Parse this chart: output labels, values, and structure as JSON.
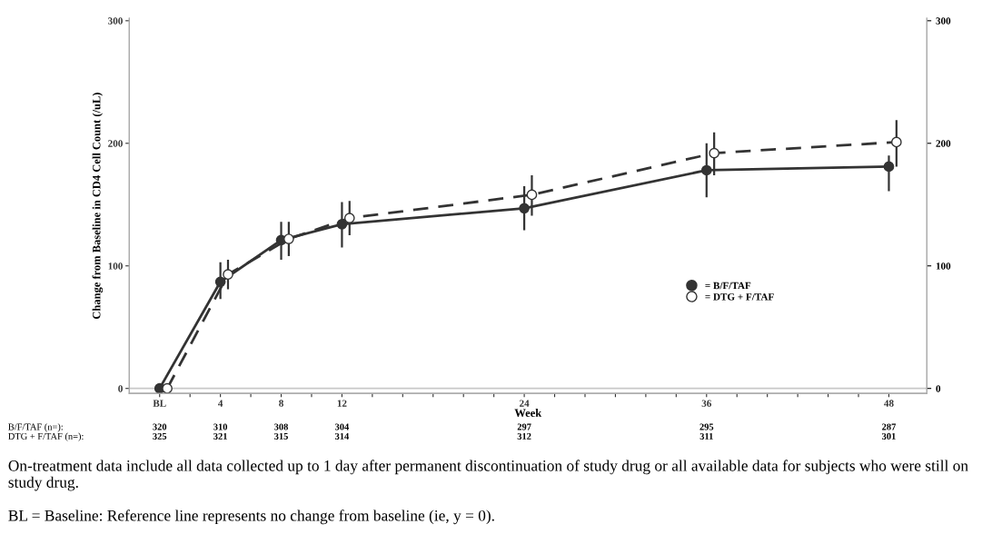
{
  "chart_data": {
    "type": "line",
    "xlabel": "Week",
    "ylabel": "Change from Baseline in CD4 Cell Count (/uL)",
    "xlim": [
      -2,
      50.5
    ],
    "ylim": [
      -4,
      302
    ],
    "y2lim": [
      -4,
      302
    ],
    "xticks": [
      {
        "value": 0,
        "label": "BL"
      },
      {
        "value": 2,
        "label": null
      },
      4,
      {
        "value": 6,
        "label": null
      },
      8,
      {
        "value": 10,
        "label": null
      },
      12,
      {
        "value": 14,
        "label": null
      },
      {
        "value": 16,
        "label": null
      },
      {
        "value": 18,
        "label": null
      },
      {
        "value": 20,
        "label": null
      },
      {
        "value": 22,
        "label": null
      },
      24,
      {
        "value": 26,
        "label": null
      },
      {
        "value": 28,
        "label": null
      },
      {
        "value": 30,
        "label": null
      },
      {
        "value": 32,
        "label": null
      },
      {
        "value": 34,
        "label": null
      },
      36,
      {
        "value": 38,
        "label": null
      },
      {
        "value": 40,
        "label": null
      },
      {
        "value": 42,
        "label": null
      },
      {
        "value": 44,
        "label": null
      },
      {
        "value": 46,
        "label": null
      },
      48
    ],
    "yticks": [
      0,
      100,
      200,
      300
    ],
    "y2ticks": [
      0,
      100,
      200,
      300
    ],
    "legend": "right",
    "grid": false,
    "ref_lines": [
      {
        "axis": "y",
        "value": 0,
        "color": "#c8c8c8"
      }
    ],
    "series": [
      {
        "name": "= B/F/TAF",
        "color": "#333333",
        "marker": "circle",
        "line_style": "solid",
        "x": [
          0,
          4,
          8,
          12,
          24,
          36,
          48
        ],
        "values": [
          0,
          87,
          121,
          134,
          147,
          178,
          181
        ],
        "errors": [
          null,
          [
            73,
            103
          ],
          [
            105,
            136
          ],
          [
            115,
            152
          ],
          [
            129,
            165
          ],
          [
            156,
            200
          ],
          [
            161,
            190
          ]
        ]
      },
      {
        "name": "= DTG + F/TAF",
        "color": "#333333",
        "marker": "circle",
        "line_style": "dashed",
        "x": [
          0.5,
          4.5,
          8.5,
          12.5,
          24.5,
          36.5,
          48.5
        ],
        "values": [
          0,
          93,
          122,
          139,
          158,
          192,
          201
        ],
        "errors": [
          null,
          [
            81,
            105
          ],
          [
            108,
            136
          ],
          [
            125,
            153
          ],
          [
            141,
            174
          ],
          [
            174,
            209
          ],
          [
            181,
            219
          ]
        ]
      }
    ],
    "annotations": [
      "B/F/TAF (n=):",
      "320",
      "310",
      "308",
      "304",
      "297",
      "295",
      "287",
      "DTG + F/TAF (n=):",
      "325",
      "321",
      "315",
      "314",
      "312",
      "311",
      "301",
      "On-treatment data include all data collected up to 1 day after permanent discontinuation of study drug or all available data for subjects who were still on study drug.",
      "BL = Baseline: Reference line represents no change from baseline (ie, y = 0)."
    ]
  }
}
